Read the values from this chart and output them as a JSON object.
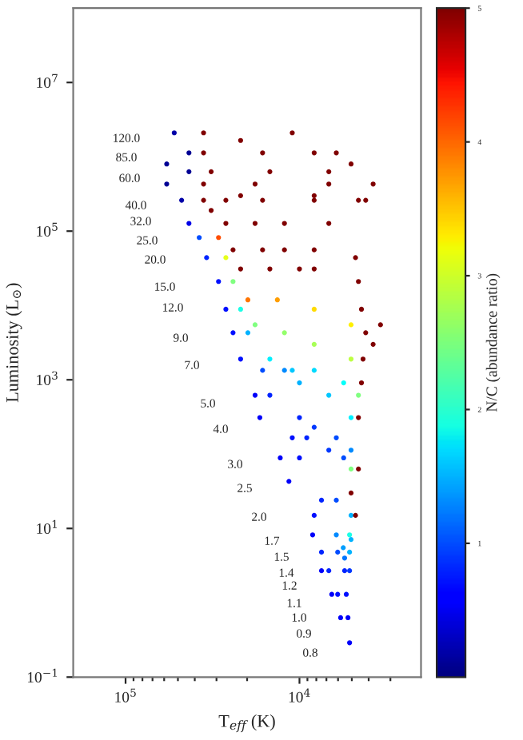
{
  "chart_data": {
    "type": "scatter",
    "xlabel": "T$_{eff}$ (K)",
    "ylabel": "Luminosity (L$_{⊙}$)",
    "clabel": "N/C (abundance ratio)",
    "log": "xy",
    "marker": "circle",
    "xlim": [
      200000,
      2000
    ],
    "ylim": [
      0.1,
      100000000
    ],
    "xticks": [
      {
        "value": 100000,
        "label": "10$^{5}$"
      },
      {
        "value": 10000,
        "label": "10$^{4}$"
      },
      {
        "value": 90000,
        "label": null
      },
      {
        "value": 80000,
        "label": null
      },
      {
        "value": 70000,
        "label": null
      },
      {
        "value": 60000,
        "label": null
      },
      {
        "value": 50000,
        "label": null
      },
      {
        "value": 40000,
        "label": null
      },
      {
        "value": 30000,
        "label": null
      },
      {
        "value": 20000,
        "label": null
      },
      {
        "value": 9000,
        "label": null
      },
      {
        "value": 8000,
        "label": null
      },
      {
        "value": 7000,
        "label": null
      },
      {
        "value": 6000,
        "label": null
      },
      {
        "value": 5000,
        "label": null
      },
      {
        "value": 4000,
        "label": null
      },
      {
        "value": 3000,
        "label": null
      }
    ],
    "yticks": [
      {
        "value": 0.1,
        "label": "10$^{−1}$"
      },
      {
        "value": 10,
        "label": "10$^{1}$"
      },
      {
        "value": 1000,
        "label": "10$^{3}$"
      },
      {
        "value": 100000,
        "label": "10$^{5}$"
      },
      {
        "value": 10000000,
        "label": "10$^{7}$"
      }
    ],
    "clim": [
      0,
      5
    ],
    "cticks": [
      1,
      2,
      3,
      4,
      5
    ],
    "series": [
      {
        "x": [
          5150,
          5260,
          5380,
          5150,
          5500,
          5050,
          5800,
          6030,
          5500,
          5600,
          6520,
          6780,
          6030,
          5150,
          7470,
          7470,
          6140,
          5150,
          8400,
          8230,
          7470,
          6140,
          5050
        ],
        "values": [
          0.29,
          0.63,
          1.3,
          2.7,
          4.0,
          7.1,
          0.63,
          1.3,
          2.7,
          5.5,
          1.3,
          2.7,
          4.8,
          4.8,
          2.7,
          4.8,
          8.2,
          8.2,
          8.2,
          15,
          24,
          24,
          15
        ],
        "colors": [
          "#0000fa",
          "#0000fa",
          "#000fff",
          "#0038ff",
          "#0076ff",
          "#00b2ff",
          "#0000fa",
          "#000fff",
          "#0024ff",
          "#009eff",
          "#0000fa",
          "#0024ff",
          "#004cff",
          "#00b2ff",
          "#0000fa",
          "#0024ff",
          "#008aff",
          "#1affe6",
          "#0000fa",
          "#000fff",
          "#0024ff",
          "#004cff",
          "#00b2ff"
        ]
      },
      {
        "x": [
          11500,
          10000,
          9080,
          6780,
          5570,
          5050,
          12900,
          11000,
          10000,
          8230,
          6140,
          5050,
          16900,
          14800,
          12200,
          10000,
          6780,
          5050,
          18000,
          16300,
          14800,
          11000,
          8230,
          5570,
          4580
        ],
        "values": [
          43,
          89,
          166,
          113,
          89,
          63,
          89,
          166,
          310,
          230,
          166,
          113,
          310,
          620,
          1340,
          910,
          620,
          310,
          620,
          1340,
          1900,
          1340,
          1340,
          910,
          620
        ],
        "colors": [
          "#0000fa",
          "#000fff",
          "#0024ff",
          "#0038ff",
          "#004cff",
          "#80ff80",
          "#0000fa",
          "#000fff",
          "#0024ff",
          "#0038ff",
          "#004cff",
          "#008aff",
          "#0000fa",
          "#0024ff",
          "#008aff",
          "#00b2ff",
          "#00c7ff",
          "#00f0ff",
          "#0000fa",
          "#004cff",
          "#00f0ff",
          "#00c7ff",
          "#00dbff",
          "#05fffa",
          "#80ff80"
        ]
      },
      {
        "x": [
          21800,
          19800,
          18000,
          12200,
          8230,
          5050,
          24100,
          21800,
          19800,
          13400,
          8230,
          5050,
          26500,
          24100,
          21800,
          14800,
          10000,
          8230,
          29200,
          26500,
          24100,
          16300,
          12200,
          8230,
          34200,
          29200,
          26500,
          18000,
          12200,
          6780,
          37700,
          32200,
          26500,
          16300,
          8230,
          4580
        ],
        "values": [
          1900,
          4300,
          5500,
          4300,
          3000,
          1900,
          4300,
          8900,
          11900,
          11900,
          8900,
          5500,
          8900,
          21000,
          31000,
          31000,
          31000,
          31000,
          21000,
          44000,
          56000,
          56000,
          56000,
          56000,
          44000,
          82000,
          127000,
          127000,
          127000,
          127000,
          82000,
          190000,
          260000,
          260000,
          260000,
          260000
        ],
        "colors": [
          "#000fff",
          "#00b2ff",
          "#80ff80",
          "#94ff6b",
          "#a8ff57",
          "#bdff42",
          "#000fff",
          "#1affe6",
          "#ff7500",
          "#ff9e00",
          "#ffdb00",
          "#fff000",
          "#000fff",
          "#80ff80",
          "#800000",
          "#800000",
          "#800000",
          "#800000",
          "#000fff",
          "#e6ff1a",
          "#800000",
          "#800000",
          "#800000",
          "#800000",
          "#0024ff",
          "#ff4d00",
          "#800000",
          "#800000",
          "#800000",
          "#800000",
          "#004cff",
          "#800000",
          "#800000",
          "#800000",
          "#800000",
          "#800000"
        ]
      },
      {
        "x": [
          43200,
          35600,
          21800,
          8230,
          4160,
          47600,
          35600,
          18000,
          6780,
          3770,
          58000,
          43200,
          32200,
          14800,
          6780,
          5050,
          58000,
          43200,
          35600,
          16300,
          8230,
          6140,
          52500,
          35600,
          21800,
          11000
        ],
        "values": [
          127000,
          260000,
          300000,
          300000,
          260000,
          260000,
          430000,
          430000,
          430000,
          430000,
          430000,
          630000,
          630000,
          630000,
          630000,
          800000,
          800000,
          1130000,
          1130000,
          1130000,
          1130000,
          1130000,
          2100000,
          2100000,
          1660000,
          2100000
        ],
        "colors": [
          "#0000e6",
          "#800000",
          "#800000",
          "#800000",
          "#800000",
          "#0000a8",
          "#800000",
          "#800000",
          "#800000",
          "#800000",
          "#000094",
          "#000094",
          "#800000",
          "#800000",
          "#800000",
          "#800000",
          "#000094",
          "#000094",
          "#800000",
          "#800000",
          "#800000",
          "#800000",
          "#0000a8",
          "#800000",
          "#800000",
          "#800000"
        ]
      },
      {
        "x": [
          4580,
          4760,
          5050,
          4580,
          4400,
          4310,
          4160,
          4400,
          4580,
          4760,
          3420,
          3770
        ],
        "values": [
          63,
          15,
          30,
          310,
          910,
          1900,
          4300,
          8900,
          21000,
          44000,
          5500,
          3000
        ],
        "color": "#800000"
      }
    ],
    "annotations": [
      "120.0",
      "85.0",
      "60.0",
      "40.0",
      "32.0",
      "25.0",
      "20.0",
      "15.0",
      "12.0",
      "9.0",
      "7.0",
      "5.0",
      "4.0",
      "3.0",
      "2.5",
      "2.0",
      "1.7",
      "1.5",
      "1.4",
      "1.2",
      "1.1",
      "1.0",
      "0.9",
      "0.8"
    ]
  }
}
